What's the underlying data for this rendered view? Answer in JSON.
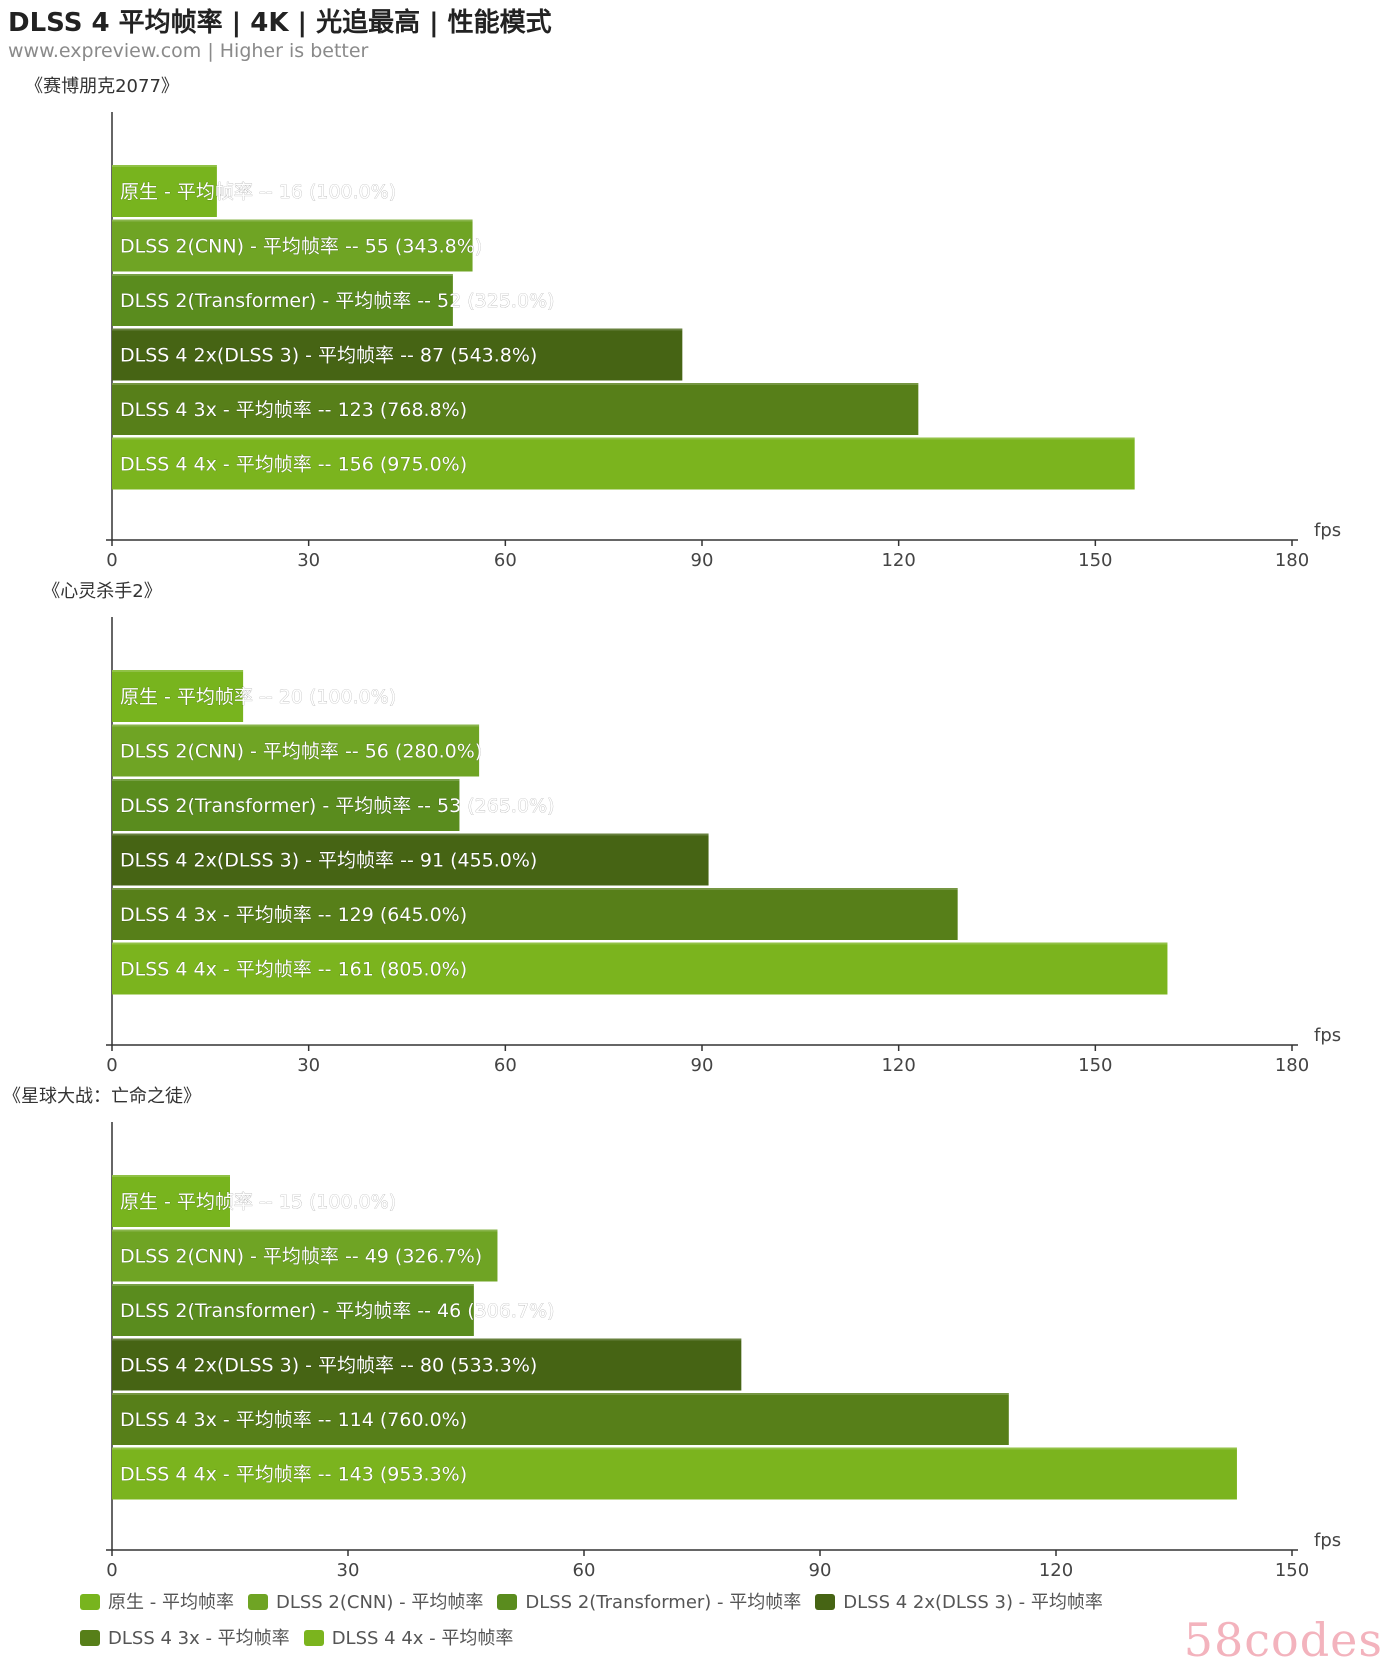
{
  "title": "DLSS 4 平均帧率 | 4K | 光追最高 | 性能模式",
  "subtitle": "www.expreview.com | Higher is better",
  "watermark": "58codes",
  "unit": "fps",
  "colors": {
    "native": "#78b41e",
    "dlss2_cnn": "#6fa424",
    "dlss2_transformer": "#5a8c1e",
    "dlss4_2x": "#466414",
    "dlss4_3x": "#577f19",
    "dlss4_4x": "#7bb41e"
  },
  "legend": [
    {
      "label": "原生 - 平均帧率",
      "color_key": "native"
    },
    {
      "label": "DLSS 2(CNN)  - 平均帧率",
      "color_key": "dlss2_cnn"
    },
    {
      "label": "DLSS 2(Transformer) - 平均帧率",
      "color_key": "dlss2_transformer"
    },
    {
      "label": "DLSS 4 2x(DLSS 3)  - 平均帧率",
      "color_key": "dlss4_2x"
    },
    {
      "label": "DLSS 4 3x  - 平均帧率",
      "color_key": "dlss4_3x"
    },
    {
      "label": "DLSS 4 4x  - 平均帧率",
      "color_key": "dlss4_4x"
    }
  ],
  "chart_data": [
    {
      "type": "bar",
      "orientation": "horizontal",
      "title": "《赛博朋克2077》",
      "xlabel": "fps",
      "xlim": [
        0,
        180
      ],
      "xticks": [
        0,
        30,
        60,
        90,
        120,
        150,
        180
      ],
      "bars": [
        {
          "label": "原生 - 平均帧率  --  16 (100.0%)",
          "value": 16,
          "color_key": "native"
        },
        {
          "label": "DLSS 2(CNN)  - 平均帧率  --  55 (343.8%)",
          "value": 55,
          "color_key": "dlss2_cnn"
        },
        {
          "label": "DLSS 2(Transformer) - 平均帧率  --  52 (325.0%)",
          "value": 52,
          "color_key": "dlss2_transformer"
        },
        {
          "label": "DLSS 4 2x(DLSS 3)  - 平均帧率  --  87 (543.8%)",
          "value": 87,
          "color_key": "dlss4_2x"
        },
        {
          "label": "DLSS 4 3x  - 平均帧率  --  123 (768.8%)",
          "value": 123,
          "color_key": "dlss4_3x"
        },
        {
          "label": "DLSS 4 4x  - 平均帧率  --  156 (975.0%)",
          "value": 156,
          "color_key": "dlss4_4x"
        }
      ]
    },
    {
      "type": "bar",
      "orientation": "horizontal",
      "title": "《心灵杀手2》",
      "xlabel": "fps",
      "xlim": [
        0,
        180
      ],
      "xticks": [
        0,
        30,
        60,
        90,
        120,
        150,
        180
      ],
      "bars": [
        {
          "label": "原生 - 平均帧率  --  20 (100.0%)",
          "value": 20,
          "color_key": "native"
        },
        {
          "label": "DLSS 2(CNN)  - 平均帧率  --  56 (280.0%)",
          "value": 56,
          "color_key": "dlss2_cnn"
        },
        {
          "label": "DLSS 2(Transformer) - 平均帧率  --  53 (265.0%)",
          "value": 53,
          "color_key": "dlss2_transformer"
        },
        {
          "label": "DLSS 4 2x(DLSS 3)  - 平均帧率  --  91 (455.0%)",
          "value": 91,
          "color_key": "dlss4_2x"
        },
        {
          "label": "DLSS 4 3x  - 平均帧率  --  129 (645.0%)",
          "value": 129,
          "color_key": "dlss4_3x"
        },
        {
          "label": "DLSS 4 4x  - 平均帧率  --  161 (805.0%)",
          "value": 161,
          "color_key": "dlss4_4x"
        }
      ]
    },
    {
      "type": "bar",
      "orientation": "horizontal",
      "title": "《星球大战：亡命之徒》",
      "xlabel": "fps",
      "xlim": [
        0,
        150
      ],
      "xticks": [
        0,
        30,
        60,
        90,
        120,
        150
      ],
      "bars": [
        {
          "label": "原生 - 平均帧率  --  15 (100.0%)",
          "value": 15,
          "color_key": "native"
        },
        {
          "label": "DLSS 2(CNN)  - 平均帧率  --  49 (326.7%)",
          "value": 49,
          "color_key": "dlss2_cnn"
        },
        {
          "label": "DLSS 2(Transformer) - 平均帧率  --  46 (306.7%)",
          "value": 46,
          "color_key": "dlss2_transformer"
        },
        {
          "label": "DLSS 4 2x(DLSS 3)  - 平均帧率  --  80 (533.3%)",
          "value": 80,
          "color_key": "dlss4_2x"
        },
        {
          "label": "DLSS 4 3x  - 平均帧率  --  114 (760.0%)",
          "value": 114,
          "color_key": "dlss4_3x"
        },
        {
          "label": "DLSS 4 4x  - 平均帧率  --  143 (953.3%)",
          "value": 143,
          "color_key": "dlss4_4x"
        }
      ]
    }
  ]
}
